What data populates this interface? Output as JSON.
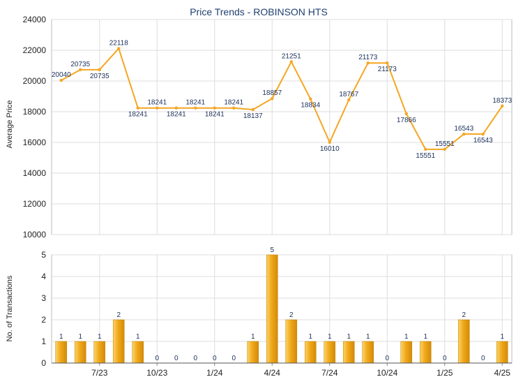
{
  "chart_data": [
    {
      "type": "line",
      "title": "Price Trends - ROBINSON HTS",
      "ylabel": "Average Price",
      "ylim": [
        10000,
        24000
      ],
      "yticks": [
        10000,
        12000,
        14000,
        16000,
        18000,
        20000,
        22000,
        24000
      ],
      "grid": true,
      "line_color": "#f5a623",
      "point_labels": [
        "20040",
        "20735",
        "20735",
        "22118",
        "18241",
        "18241",
        "18241",
        "18241",
        "18241",
        "18241",
        "18137",
        "18857",
        "21251",
        "18834",
        "16010",
        "18767",
        "21173",
        "21173",
        "17866",
        "15551",
        "15551",
        "16543",
        "16543",
        "18373"
      ],
      "values": [
        20040,
        20735,
        20735,
        22118,
        18241,
        18241,
        18241,
        18241,
        18241,
        18241,
        18137,
        18857,
        21251,
        18834,
        16010,
        18767,
        21173,
        21173,
        17866,
        15551,
        15551,
        16543,
        16543,
        18373
      ]
    },
    {
      "type": "bar",
      "ylabel": "No. of Transactions",
      "ylim": [
        0,
        5
      ],
      "yticks": [
        0,
        1,
        2,
        3,
        4,
        5
      ],
      "grid": true,
      "bar_color": "#f0a81a",
      "values": [
        1,
        1,
        1,
        2,
        1,
        0,
        0,
        0,
        0,
        0,
        1,
        5,
        2,
        1,
        1,
        1,
        1,
        0,
        1,
        1,
        0,
        2,
        0,
        1
      ],
      "xtick_labels": [
        {
          "label": "7/23",
          "index": 2
        },
        {
          "label": "10/23",
          "index": 5
        },
        {
          "label": "1/24",
          "index": 8
        },
        {
          "label": "4/24",
          "index": 11
        },
        {
          "label": "7/24",
          "index": 14
        },
        {
          "label": "10/24",
          "index": 17
        },
        {
          "label": "1/25",
          "index": 20
        },
        {
          "label": "4/25",
          "index": 23
        }
      ]
    }
  ]
}
